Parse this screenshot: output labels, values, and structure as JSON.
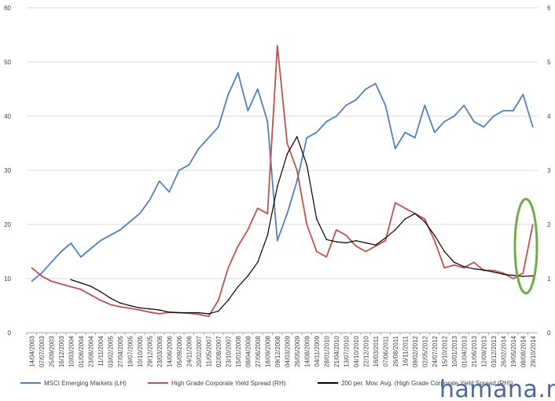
{
  "chart_data": {
    "type": "line",
    "title": "",
    "xlabel": "",
    "ylabel_left": "",
    "ylabel_right": "",
    "y_left": {
      "min": 0,
      "max": 60,
      "ticks": [
        0,
        10,
        20,
        30,
        40,
        50,
        60
      ]
    },
    "y_right": {
      "min": 0,
      "max": 6,
      "ticks": [
        0,
        1,
        2,
        3,
        4,
        5,
        6
      ]
    },
    "grid": {
      "horizontal": true,
      "vertical": false
    },
    "legend_position": "bottom",
    "x_tick_labels": [
      "14/04/2003",
      "07/07/2003",
      "25/09/2003",
      "16/12/2003",
      "10/03/2004",
      "01/06/2004",
      "23/08/2004",
      "11/11/2004",
      "03/02/2005",
      "27/04/2005",
      "19/07/2005",
      "10/10/2005",
      "29/12/2005",
      "23/03/2006",
      "14/06/2006",
      "05/09/2006",
      "24/11/2006",
      "20/02/2007",
      "11/05/2007",
      "02/08/2007",
      "23/10/2007",
      "15/01/2008",
      "08/04/2008",
      "27/06/2008",
      "18/09/2008",
      "09/12/2008",
      "04/03/2009",
      "26/05/2009",
      "14/08/2009",
      "04/11/2009",
      "28/01/2010",
      "21/04/2010",
      "13/07/2010",
      "04/10/2010",
      "22/12/2010",
      "16/03/2011",
      "07/06/2011",
      "26/08/2011",
      "16/11/2011",
      "09/02/2012",
      "02/05/2012",
      "24/07/2012",
      "15/10/2012",
      "10/01/2013",
      "01/04/2013",
      "21/06/2013",
      "12/09/2013",
      "03/12/2013",
      "26/02/2014",
      "19/05/2014",
      "08/08/2014",
      "29/10/2014"
    ],
    "series": [
      {
        "name": "MSCI Emerging Markets (LH)",
        "axis": "left",
        "color": "#4f81bd",
        "x": [
          0,
          1,
          2,
          3,
          4,
          5,
          6,
          7,
          8,
          9,
          10,
          11,
          12,
          13,
          14,
          15,
          16,
          17,
          18,
          19,
          20,
          21,
          22,
          23,
          24,
          25,
          26,
          27,
          28,
          29,
          30,
          31,
          32,
          33,
          34,
          35,
          36,
          37,
          38,
          39,
          40,
          41,
          42,
          43,
          44,
          45,
          46,
          47,
          48,
          49,
          50,
          51
        ],
        "values": [
          9.5,
          11,
          13,
          15,
          16.5,
          14,
          15.5,
          17,
          18,
          19,
          20.5,
          22,
          24.5,
          28,
          26,
          30,
          31,
          34,
          36,
          38,
          44,
          48,
          41,
          45,
          39,
          17,
          22,
          28,
          36,
          37,
          39,
          40,
          42,
          43,
          45,
          46,
          42,
          34,
          37,
          36,
          42,
          37,
          39,
          40,
          42,
          39,
          38,
          40,
          41,
          41,
          44,
          38
        ]
      },
      {
        "name": "High Grade Corporate Yield Spread (RH)",
        "axis": "right",
        "color": "#c0504d",
        "x": [
          0,
          1,
          2,
          3,
          4,
          5,
          6,
          7,
          8,
          9,
          10,
          11,
          12,
          13,
          14,
          15,
          16,
          17,
          18,
          19,
          20,
          21,
          22,
          23,
          24,
          25,
          26,
          27,
          28,
          29,
          30,
          31,
          32,
          33,
          34,
          35,
          36,
          37,
          38,
          39,
          40,
          41,
          42,
          43,
          44,
          45,
          46,
          47,
          48,
          49,
          50,
          51
        ],
        "values": [
          1.2,
          1.05,
          0.95,
          0.9,
          0.85,
          0.8,
          0.7,
          0.6,
          0.52,
          0.48,
          0.45,
          0.42,
          0.38,
          0.35,
          0.38,
          0.37,
          0.36,
          0.34,
          0.3,
          0.6,
          1.2,
          1.6,
          1.9,
          2.3,
          2.2,
          5.3,
          3.5,
          3.0,
          2.0,
          1.5,
          1.4,
          1.9,
          1.8,
          1.6,
          1.5,
          1.6,
          1.7,
          2.4,
          2.3,
          2.2,
          2.1,
          1.7,
          1.2,
          1.25,
          1.2,
          1.3,
          1.15,
          1.15,
          1.1,
          1.0,
          1.1,
          2.0
        ]
      },
      {
        "name": "200 per. Mov. Avg. (High Grade Corporate Yield Spread (RH))",
        "axis": "right",
        "color": "#000000",
        "x": [
          4,
          5,
          6,
          7,
          8,
          9,
          10,
          11,
          12,
          13,
          14,
          15,
          16,
          17,
          18,
          19,
          20,
          21,
          22,
          23,
          24,
          25,
          26,
          27,
          28,
          29,
          30,
          31,
          32,
          33,
          34,
          35,
          36,
          37,
          38,
          39,
          40,
          41,
          42,
          43,
          44,
          45,
          46,
          47,
          48,
          49,
          50,
          51
        ],
        "values": [
          0.98,
          0.92,
          0.86,
          0.76,
          0.64,
          0.55,
          0.5,
          0.46,
          0.44,
          0.42,
          0.38,
          0.37,
          0.37,
          0.37,
          0.35,
          0.4,
          0.6,
          0.85,
          1.05,
          1.3,
          1.8,
          2.7,
          3.3,
          3.62,
          3.1,
          2.1,
          1.72,
          1.68,
          1.66,
          1.7,
          1.66,
          1.62,
          1.75,
          1.9,
          2.1,
          2.2,
          2.05,
          1.8,
          1.5,
          1.3,
          1.22,
          1.18,
          1.16,
          1.12,
          1.08,
          1.06,
          1.04,
          1.05
        ]
      }
    ],
    "annotations": [
      {
        "type": "ellipse",
        "color": "#70ad47",
        "x_index": 50.8,
        "y_right": 1.6,
        "note_text": ""
      }
    ]
  },
  "watermark": "hamana.net",
  "colors": {
    "grid": "#d9d9d9",
    "axis": "#a6a6a6",
    "highlight": "#70ad47"
  }
}
